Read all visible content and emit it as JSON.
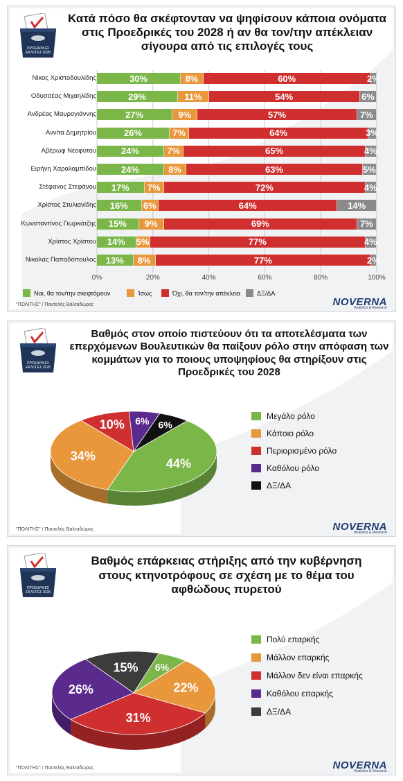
{
  "colors": {
    "green": "#7ab648",
    "orange": "#e8973a",
    "red": "#cf2f2f",
    "gray": "#8a8a8a",
    "purple": "#5a2a8c",
    "black": "#111111",
    "darkgray": "#3c3c3c",
    "title_navy": "#1e2a40"
  },
  "ballot_badge": "ΠΡΟΕΔΡΙΚΕΣ ΕΚΛΟΓΕΣ 2028",
  "source": "\"ΠΟΛΙΤΗΣ\" / Παντελής Βαλταδώρος",
  "logo": {
    "name": "NOVERNA",
    "tagline": "Analytics & Research"
  },
  "chart_data": [
    {
      "type": "bar",
      "orientation": "horizontal-stacked",
      "title": "Κατά πόσο θα σκέφτονταν να ψηφίσουν κάποια ονόματα στις Προεδρικές του 2028 ή αν θα τον/την απέκλειαν σίγουρα από τις επιλογές τους",
      "categories": [
        "Νίκος Χριστοδουλίδης",
        "Οδυσσέας Μιχαηλίδης",
        "Ανδρέας Μαυρογιάννης",
        "Αννίτα Δημητρίου",
        "Αβέρωφ Νεοφύτου",
        "Ειρήνη Χαραλαμπίδου",
        "Στέφανος Στεφάνου",
        "Χρίστος Στυλιανίδης",
        "Κωνσταντίνος Γιωρκάτζης",
        "Χρίστος Χρίστου",
        "Νικόλας Παπαδόπουλος"
      ],
      "series": [
        {
          "name": "Ναι, θα τον/την σκεφτόμουν",
          "color": "#7ab648",
          "values": [
            30,
            29,
            27,
            26,
            24,
            24,
            17,
            16,
            15,
            14,
            13
          ]
        },
        {
          "name": "Ίσως",
          "color": "#e8973a",
          "values": [
            8,
            11,
            9,
            7,
            7,
            8,
            7,
            6,
            9,
            5,
            8
          ]
        },
        {
          "name": "Όχι, θα τον/την απέκλεια",
          "color": "#cf2f2f",
          "values": [
            60,
            54,
            57,
            64,
            65,
            63,
            72,
            64,
            69,
            77,
            77
          ]
        },
        {
          "name": "ΔΞ/ΔΑ",
          "color": "#8a8a8a",
          "values": [
            2,
            6,
            7,
            3,
            4,
            5,
            4,
            14,
            7,
            4,
            2
          ]
        }
      ],
      "value_suffix": "%",
      "xlim": [
        0,
        100
      ],
      "ticks": [
        "0%",
        "20%",
        "40%",
        "60%",
        "80%",
        "100%"
      ],
      "grid": true,
      "legend_position": "bottom"
    },
    {
      "type": "pie",
      "title": "Βαθμός στον οποίο πιστεύουν ότι τα αποτελέσματα των επερχόμενων Βουλευτικών θα παίξουν ρόλο στην απόφαση των κομμάτων για το ποιους υποψηφίους θα στηρίξουν στις Προεδρικές του 2028",
      "slices": [
        {
          "label": "Μεγάλο ρόλο",
          "value": 44,
          "color": "#7ab648"
        },
        {
          "label": "Κάποιο ρόλο",
          "value": 34,
          "color": "#e8973a"
        },
        {
          "label": "Περιορισμένο ρόλο",
          "value": 10,
          "color": "#cf2f2f"
        },
        {
          "label": "Καθόλου ρόλο",
          "value": 6,
          "color": "#5a2a8c"
        },
        {
          "label": "ΔΞ/ΔΑ",
          "value": 6,
          "color": "#111111"
        }
      ],
      "value_suffix": "%",
      "legend_position": "right"
    },
    {
      "type": "pie",
      "title": "Βαθμός επάρκειας στήριξης από την κυβέρνηση στους κτηνοτρόφους σε σχέση με το θέμα του αφθώδους πυρετού",
      "slices": [
        {
          "label": "Πολύ επαρκής",
          "value": 6,
          "color": "#7ab648"
        },
        {
          "label": "Μάλλον επαρκής",
          "value": 22,
          "color": "#e8973a"
        },
        {
          "label": "Μάλλον δεν είναι επαρκής",
          "value": 31,
          "color": "#cf2f2f"
        },
        {
          "label": "Καθόλου επαρκής",
          "value": 26,
          "color": "#5a2a8c"
        },
        {
          "label": "ΔΞ/ΔΑ",
          "value": 15,
          "color": "#3c3c3c"
        }
      ],
      "value_suffix": "%",
      "legend_position": "right"
    }
  ]
}
